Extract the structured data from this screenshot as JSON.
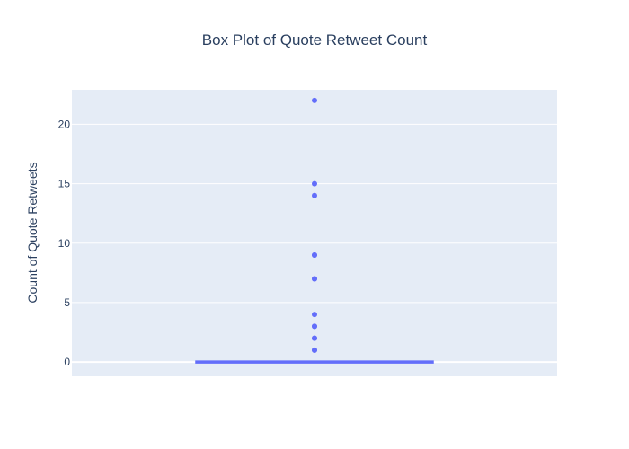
{
  "chart_data": {
    "type": "box",
    "title": "Box Plot of Quote Retweet Count",
    "xlabel": "",
    "ylabel": "Count of Quote Retweets",
    "ylim": [
      -1.2,
      22.9
    ],
    "yticks": [
      0,
      5,
      10,
      15,
      20
    ],
    "grid": true,
    "legend": "none",
    "colors": {
      "plot_background": "#e5ecf6",
      "grid": "#ffffff",
      "box": "#636efa",
      "text": "#2a3f5f"
    },
    "box": {
      "min": 0,
      "q1": 0,
      "median": 0,
      "q3": 0,
      "max": 0
    },
    "outliers": [
      1,
      1,
      2,
      2,
      3,
      3,
      4,
      7,
      7,
      9,
      9,
      14,
      15,
      22
    ]
  }
}
